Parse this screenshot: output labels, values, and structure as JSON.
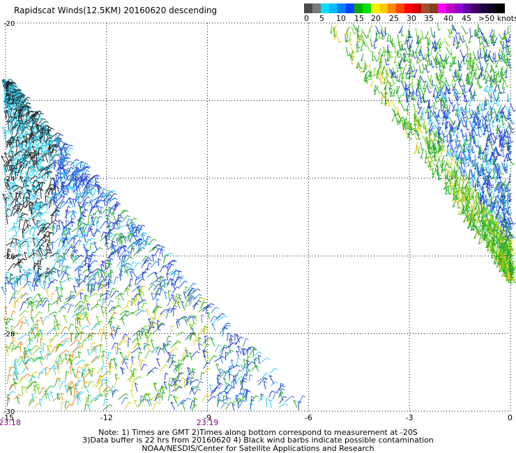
{
  "title": "Rapidscat Winds(12.5KM) 20160620 descending",
  "legend": {
    "colors": [
      "#4d4d4d",
      "#7a7a7a",
      "#00ddff",
      "#00bbff",
      "#0080ff",
      "#0040ff",
      "#00aa00",
      "#00dd00",
      "#ffee00",
      "#ffcc00",
      "#ff8800",
      "#ff4400",
      "#ff0000",
      "#d00000",
      "#a05030",
      "#804020",
      "#ff00ff",
      "#c000c0",
      "#9000d0",
      "#6000a0",
      "#400060",
      "#200040",
      "#100020",
      "#000000"
    ],
    "labels": [
      "0",
      "5",
      "10",
      "15",
      "20",
      "25",
      "30",
      "35",
      "40",
      "45",
      ">50 knots"
    ]
  },
  "axes": {
    "lon_labels": [
      "-15",
      "-12",
      "-9",
      "-6",
      "-3",
      "0"
    ],
    "lat_labels": [
      "-20",
      "-22",
      "-24",
      "-26",
      "-28",
      "-30"
    ],
    "lon_range": [
      -15,
      0
    ],
    "lat_range": [
      -30,
      -20
    ]
  },
  "times": [
    "23:18",
    "23:19"
  ],
  "notes": [
    "Note: 1) Times are GMT 2)Times along bottom correspond to measurement at -20S",
    "3)Data buffer is 22 hrs from 20160620 4) Black wind barbs indicate possible contamination",
    "NOAA/NESDIS/Center for Satellite Applications and Research"
  ],
  "colors": {
    "grid": "#000000",
    "time_label": "#800080"
  }
}
